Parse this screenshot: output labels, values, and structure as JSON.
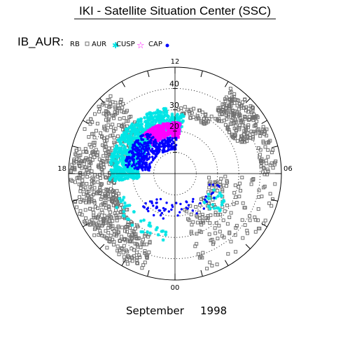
{
  "header": {
    "title": "IKI - Satellite Situation Center (SSC)"
  },
  "legend": {
    "prefix": "IB_AUR:",
    "items": [
      {
        "label": "RB",
        "marker": "square",
        "color": "#707070"
      },
      {
        "label": "AUR",
        "marker": "star",
        "color": "#00e5e5"
      },
      {
        "label": "CUSP",
        "marker": "open-star",
        "color": "#ff00ff"
      },
      {
        "label": "CAP",
        "marker": "dot",
        "color": "#0000ff"
      }
    ]
  },
  "footer": {
    "month": "September",
    "year": "1998"
  },
  "chart_data": {
    "type": "scatter",
    "coordinates": "polar (magnetic local time vs magnetic latitude, north polar view)",
    "theta_axis": {
      "unit": "MLT hours",
      "tick_labels": [
        {
          "label": "12",
          "mlt": 12
        },
        {
          "label": "18",
          "mlt": 18
        },
        {
          "label": "06",
          "mlt": 6
        },
        {
          "label": "00",
          "mlt": 0
        }
      ]
    },
    "radial_axis": {
      "rings_shown": [
        "40",
        "30",
        "20"
      ],
      "ring_values": [
        40,
        30,
        20,
        10
      ],
      "outer_edge": 50
    },
    "grid": true,
    "series": [
      {
        "name": "RB",
        "regions": [
          {
            "mlt": [
              14.4,
              17.0
            ],
            "r": [
              24,
              48
            ],
            "count": 160
          },
          {
            "mlt": [
              17.0,
              20.8
            ],
            "r": [
              28,
              49
            ],
            "count": 320
          },
          {
            "mlt": [
              20.8,
              22.8
            ],
            "r": [
              30,
              48
            ],
            "count": 120
          },
          {
            "mlt": [
              1.0,
              5.8
            ],
            "r": [
              16,
              48
            ],
            "count": 160
          },
          {
            "mlt": [
              7.6,
              9.8
            ],
            "r": [
              32,
              48
            ],
            "count": 200
          },
          {
            "mlt": [
              9.8,
              11.8
            ],
            "r": [
              27,
              32
            ],
            "count": 40
          },
          {
            "mlt": [
              5.8,
              7.6
            ],
            "r": [
              40,
              48
            ],
            "count": 40
          }
        ]
      },
      {
        "name": "AUR",
        "regions": [
          {
            "mlt": [
              12.5,
              18.5
            ],
            "r": [
              17,
              31
            ],
            "count": 800
          },
          {
            "mlt": [
              11.4,
              12.5
            ],
            "r": [
              20,
              28
            ],
            "count": 80
          },
          {
            "mlt": [
              19.5,
              23.6
            ],
            "r": [
              26,
              32
            ],
            "count": 35
          },
          {
            "mlt": [
              3.0,
              5.0
            ],
            "r": [
              18,
              28
            ],
            "count": 25
          }
        ]
      },
      {
        "name": "CUSP",
        "regions": [
          {
            "mlt": [
              11.6,
              14.6
            ],
            "r": [
              17,
              24
            ],
            "count": 250
          }
        ]
      },
      {
        "name": "CAP",
        "regions": [
          {
            "mlt": [
              14.0,
              17.6
            ],
            "r": [
              12,
              24
            ],
            "count": 300
          },
          {
            "mlt": [
              11.8,
              14.0
            ],
            "r": [
              11,
              17
            ],
            "count": 80
          },
          {
            "mlt": [
              21.0,
              2.5
            ],
            "r": [
              13,
              22
            ],
            "count": 45
          },
          {
            "mlt": [
              2.5,
              5.0
            ],
            "r": [
              17,
              22
            ],
            "count": 12
          }
        ]
      }
    ]
  }
}
